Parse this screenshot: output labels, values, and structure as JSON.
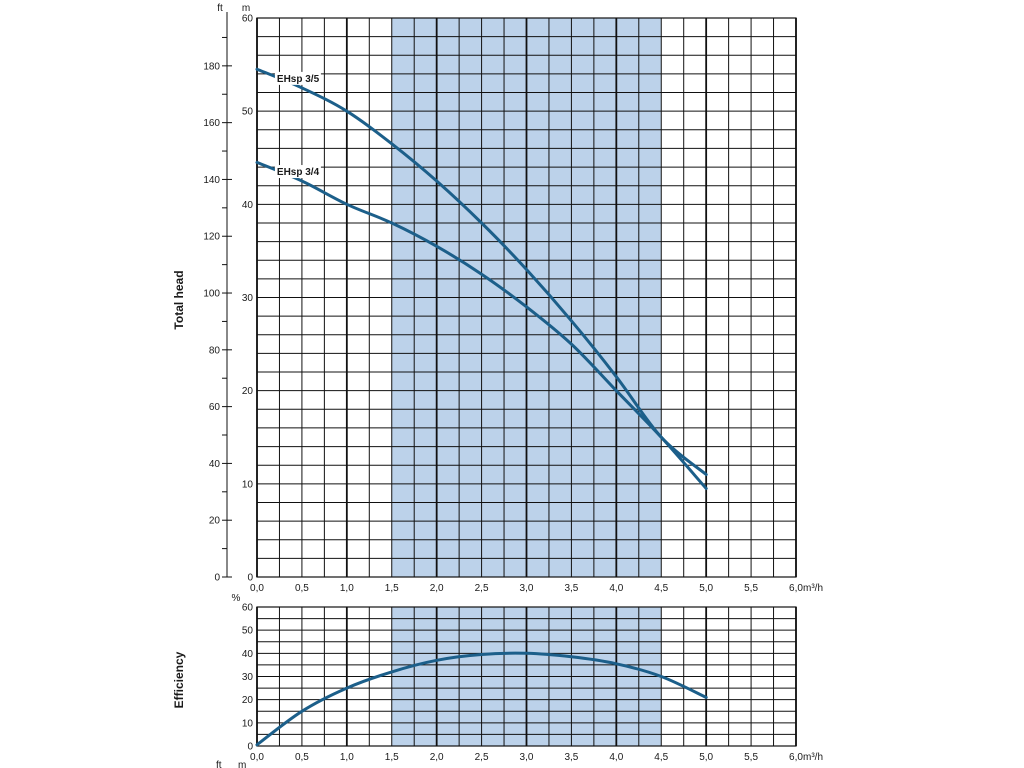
{
  "colors": {
    "curve": "#1c5f8a",
    "band": "#bcd2ea",
    "grid": "#111111",
    "label_bg": "#ffffff"
  },
  "chart_data": [
    {
      "type": "line",
      "ylabel": "Total head",
      "y_unit_left": "ft",
      "y_unit_right": "m",
      "x_unit": "m³/h",
      "xlim": [
        0,
        6
      ],
      "ylim_m": [
        0,
        60
      ],
      "ylim_ft": [
        0,
        196.85
      ],
      "x_ticks": [
        "0,0",
        "0,5",
        "1,0",
        "1,5",
        "2,0",
        "2,5",
        "3,0",
        "3,5",
        "4,0",
        "4,5",
        "5,0",
        "5,5",
        "6,0"
      ],
      "y_ticks_m": [
        0,
        10,
        20,
        30,
        40,
        50,
        60
      ],
      "y_ticks_ft": [
        0,
        20,
        40,
        60,
        80,
        100,
        120,
        140,
        160,
        180
      ],
      "grid": true,
      "highlight_range_x": [
        1.5,
        4.5
      ],
      "series": [
        {
          "name": "EHsp 3/5",
          "x": [
            0,
            0.5,
            1.0,
            1.5,
            2.0,
            2.5,
            3.0,
            3.5,
            4.0,
            4.5,
            5.0
          ],
          "y": [
            54.5,
            52.5,
            50.0,
            46.5,
            42.5,
            38.0,
            33.0,
            27.5,
            21.5,
            15.0,
            11.0
          ]
        },
        {
          "name": "EHsp 3/4",
          "x": [
            0,
            0.5,
            1.0,
            1.5,
            2.0,
            2.5,
            3.0,
            3.5,
            4.0,
            4.5,
            5.0
          ],
          "y": [
            44.5,
            42.5,
            40.0,
            38.0,
            35.5,
            32.5,
            29.0,
            25.0,
            20.0,
            15.0,
            9.5
          ]
        }
      ]
    },
    {
      "type": "line",
      "ylabel": "Efficiency",
      "y_unit": "%",
      "x_unit": "m³/h",
      "xlim": [
        0,
        6
      ],
      "ylim": [
        0,
        60
      ],
      "x_ticks": [
        "0,0",
        "0,5",
        "1,0",
        "1,5",
        "2,0",
        "2,5",
        "3,0",
        "3,5",
        "4,0",
        "4,5",
        "5,0",
        "5,5",
        "6,0"
      ],
      "y_ticks": [
        0,
        10,
        20,
        30,
        40,
        50,
        60
      ],
      "grid": true,
      "highlight_range_x": [
        1.5,
        4.5
      ],
      "series": [
        {
          "x": [
            0,
            0.5,
            1.0,
            1.5,
            2.0,
            2.5,
            3.0,
            3.5,
            4.0,
            4.5,
            5.0
          ],
          "y": [
            0.5,
            15.0,
            25.0,
            32.0,
            37.0,
            39.5,
            40.0,
            38.5,
            35.5,
            30.0,
            21.0
          ]
        }
      ]
    }
  ],
  "footer": {
    "unit_left": "ft",
    "unit_right": "m"
  }
}
